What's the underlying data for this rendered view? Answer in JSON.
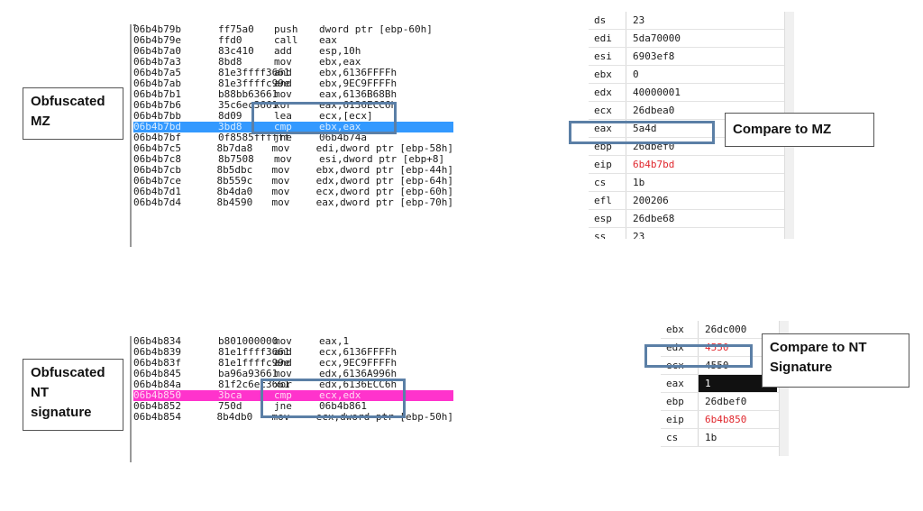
{
  "labels": {
    "obf_mz": [
      "Obfuscated",
      "MZ"
    ],
    "cmp_mz": "Compare to MZ",
    "obf_nt": [
      "Obfuscated",
      "NT",
      "signature"
    ],
    "cmp_nt": [
      "Compare to NT",
      "Signature"
    ]
  },
  "disasm_top": [
    {
      "addr": "06b4b79b",
      "bytes": "ff75a0",
      "mn": "push",
      "op": "dword ptr [ebp-60h]"
    },
    {
      "addr": "06b4b79e",
      "bytes": "ffd0",
      "mn": "call",
      "op": "eax"
    },
    {
      "addr": "06b4b7a0",
      "bytes": "83c410",
      "mn": "add",
      "op": "esp,10h"
    },
    {
      "addr": "06b4b7a3",
      "bytes": "8bd8",
      "mn": "mov",
      "op": "ebx,eax"
    },
    {
      "addr": "06b4b7a5",
      "bytes": "81e3ffff3661",
      "mn": "and",
      "op": "ebx,6136FFFFh"
    },
    {
      "addr": "06b4b7ab",
      "bytes": "81e3ffffc99e",
      "mn": "and",
      "op": "ebx,9EC9FFFFh"
    },
    {
      "addr": "06b4b7b1",
      "bytes": "b88bb63661",
      "mn": "mov",
      "op": "eax,6136B68Bh"
    },
    {
      "addr": "06b4b7b6",
      "bytes": "35c6ec3661",
      "mn": "xor",
      "op": "eax,6136ECC6h"
    },
    {
      "addr": "06b4b7bb",
      "bytes": "8d09",
      "mn": "lea",
      "op": "ecx,[ecx]"
    },
    {
      "addr": "06b4b7bd",
      "bytes": "3bd8",
      "mn": "cmp",
      "op": "ebx,eax"
    },
    {
      "addr": "06b4b7bf",
      "bytes": "0f8585ffffff",
      "mn": "jne",
      "op": "06b4b74a"
    },
    {
      "addr": "06b4b7c5",
      "bytes": "8b7da8",
      "mn": "mov",
      "op": "edi,dword ptr [ebp-58h]"
    },
    {
      "addr": "06b4b7c8",
      "bytes": "8b7508",
      "mn": "mov",
      "op": "esi,dword ptr [ebp+8]"
    },
    {
      "addr": "06b4b7cb",
      "bytes": "8b5dbc",
      "mn": "mov",
      "op": "ebx,dword ptr [ebp-44h]"
    },
    {
      "addr": "06b4b7ce",
      "bytes": "8b559c",
      "mn": "mov",
      "op": "edx,dword ptr [ebp-64h]"
    },
    {
      "addr": "06b4b7d1",
      "bytes": "8b4da0",
      "mn": "mov",
      "op": "ecx,dword ptr [ebp-60h]"
    },
    {
      "addr": "06b4b7d4",
      "bytes": "8b4590",
      "mn": "mov",
      "op": "eax,dword ptr [ebp-70h]"
    }
  ],
  "disasm_bottom": [
    {
      "addr": "06b4b834",
      "bytes": "b801000000",
      "mn": "mov",
      "op": "eax,1"
    },
    {
      "addr": "06b4b839",
      "bytes": "81e1ffff3661",
      "mn": "and",
      "op": "ecx,6136FFFFh"
    },
    {
      "addr": "06b4b83f",
      "bytes": "81e1ffffc99e",
      "mn": "and",
      "op": "ecx,9EC9FFFFh"
    },
    {
      "addr": "06b4b845",
      "bytes": "ba96a93661",
      "mn": "mov",
      "op": "edx,6136A996h"
    },
    {
      "addr": "06b4b84a",
      "bytes": "81f2c6ec3661",
      "mn": "xor",
      "op": "edx,6136ECC6h"
    },
    {
      "addr": "06b4b850",
      "bytes": "3bca",
      "mn": "cmp",
      "op": "ecx,edx"
    },
    {
      "addr": "06b4b852",
      "bytes": "750d",
      "mn": "jne",
      "op": "06b4b861"
    },
    {
      "addr": "06b4b854",
      "bytes": "8b4db0",
      "mn": "mov",
      "op": "ecx,dword ptr [ebp-50h]"
    }
  ],
  "regs_top": [
    {
      "name": "ds",
      "val": "23"
    },
    {
      "name": "edi",
      "val": "5da70000"
    },
    {
      "name": "esi",
      "val": "6903ef8"
    },
    {
      "name": "ebx",
      "val": "0"
    },
    {
      "name": "edx",
      "val": "40000001"
    },
    {
      "name": "ecx",
      "val": "26dbea0"
    },
    {
      "name": "eax",
      "val": "5a4d"
    },
    {
      "name": "ebp",
      "val": "26dbef0"
    },
    {
      "name": "eip",
      "val": "6b4b7bd",
      "red": true
    },
    {
      "name": "cs",
      "val": "1b"
    },
    {
      "name": "efl",
      "val": "200206"
    },
    {
      "name": "esp",
      "val": "26dbe68"
    },
    {
      "name": "ss",
      "val": "23"
    }
  ],
  "regs_bottom": [
    {
      "name": "ebx",
      "val": "26dc000"
    },
    {
      "name": "edx",
      "val": "4550",
      "red": true
    },
    {
      "name": "ecx",
      "val": "4550"
    },
    {
      "name": "eax",
      "val": "1",
      "black": true
    },
    {
      "name": "ebp",
      "val": "26dbef0"
    },
    {
      "name": "eip",
      "val": "6b4b850",
      "red": true
    },
    {
      "name": "cs",
      "val": "1b"
    }
  ]
}
